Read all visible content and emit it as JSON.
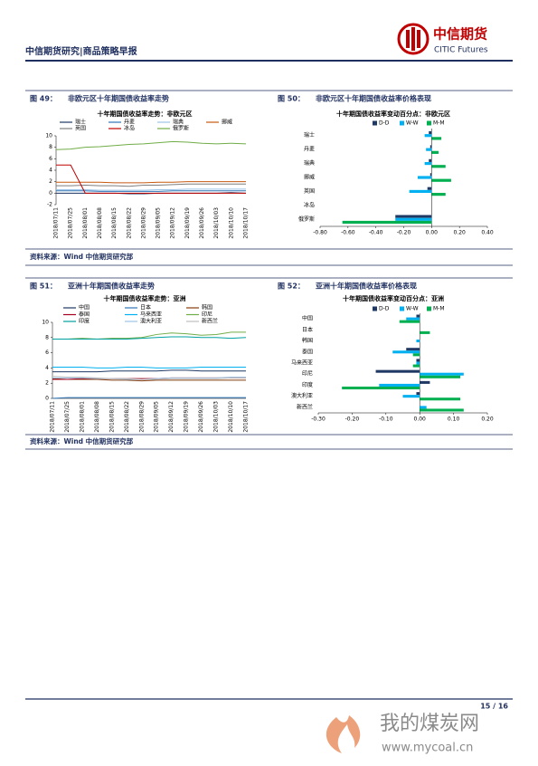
{
  "header": {
    "title": "中信期货研究|商品策略早报",
    "logo_cn": "中信期货",
    "logo_en": "CITIC Futures"
  },
  "figures": [
    {
      "number": "图 49：",
      "caption": "非欧元区十年期国债收益率走势"
    },
    {
      "number": "图 50：",
      "caption": "非欧元区十年期国债收益率价格表现"
    },
    {
      "number": "图 51：",
      "caption": "亚洲十年期国债收益率走势"
    },
    {
      "number": "图 52：",
      "caption": "亚洲十年期国债收益率价格表现"
    }
  ],
  "sources": [
    "资料来源：Wind  中信期货研究部",
    "资料来源：Wind  中信期货研究部"
  ],
  "footer": {
    "page": "15 / 16"
  },
  "watermark": {
    "name": "我的煤炭网",
    "url": "www.mycoal.cn"
  },
  "chart_data": [
    {
      "type": "line",
      "title": "十年期国债收益率走势：非欧元区",
      "categories": [
        "2018/07/11",
        "2018/07/25",
        "2018/08/01",
        "2018/08/08",
        "2018/08/15",
        "2018/08/22",
        "2018/08/29",
        "2018/09/05",
        "2018/09/12",
        "2018/09/19",
        "2018/09/26",
        "2018/10/03",
        "2018/10/10",
        "2018/10/17"
      ],
      "series": [
        {
          "name": "瑞士",
          "color": "#1f3864",
          "values": [
            0.0,
            0.0,
            0.0,
            0.0,
            0.0,
            -0.1,
            -0.1,
            0.0,
            0.0,
            0.0,
            0.0,
            0.0,
            0.1,
            0.0
          ]
        },
        {
          "name": "丹麦",
          "color": "#2e75b6",
          "values": [
            0.4,
            0.4,
            0.4,
            0.3,
            0.3,
            0.3,
            0.3,
            0.3,
            0.4,
            0.4,
            0.4,
            0.4,
            0.4,
            0.4
          ]
        },
        {
          "name": "瑞典",
          "color": "#9dc3e6",
          "values": [
            0.6,
            0.6,
            0.6,
            0.5,
            0.5,
            0.5,
            0.5,
            0.6,
            0.6,
            0.7,
            0.7,
            0.7,
            0.7,
            0.7
          ]
        },
        {
          "name": "挪威",
          "color": "#c55a11",
          "values": [
            1.9,
            1.9,
            1.9,
            1.9,
            1.8,
            1.8,
            1.8,
            1.9,
            1.9,
            2.0,
            2.0,
            2.0,
            2.0,
            2.0
          ]
        },
        {
          "name": "英国",
          "color": "#7f7f7f",
          "values": [
            1.3,
            1.3,
            1.4,
            1.3,
            1.3,
            1.2,
            1.4,
            1.4,
            1.5,
            1.6,
            1.6,
            1.6,
            1.6,
            1.6
          ]
        },
        {
          "name": "冰岛",
          "color": "#c00000",
          "values": [
            4.9,
            4.9,
            0.0,
            0.0,
            0.0,
            0.0,
            0.0,
            0.0,
            0.0,
            0.0,
            0.0,
            0.0,
            0.0,
            0.0
          ]
        },
        {
          "name": "俄罗斯",
          "color": "#70ad47",
          "values": [
            7.6,
            7.7,
            8.0,
            8.1,
            8.3,
            8.5,
            8.6,
            8.8,
            9.0,
            8.9,
            8.7,
            8.6,
            8.7,
            8.6
          ]
        }
      ],
      "ylim": [
        -2,
        10
      ],
      "yticks": [
        -2,
        0,
        2,
        4,
        6,
        8,
        10
      ]
    },
    {
      "type": "bar",
      "orientation": "horizontal",
      "title": "十年期国债收益率变动百分点：非欧元区",
      "categories": [
        "瑞士",
        "丹麦",
        "瑞典",
        "挪威",
        "英国",
        "冰岛",
        "俄罗斯"
      ],
      "series": [
        {
          "name": "D-D",
          "color": "#1f3864",
          "values": [
            -0.02,
            -0.01,
            -0.02,
            -0.01,
            -0.03,
            0,
            -0.26
          ]
        },
        {
          "name": "W-W",
          "color": "#00b0f0",
          "values": [
            -0.05,
            -0.04,
            -0.05,
            -0.1,
            -0.16,
            0,
            -0.26
          ]
        },
        {
          "name": "M-M",
          "color": "#00b050",
          "values": [
            0.07,
            0.05,
            0.1,
            0.14,
            0.1,
            0,
            -0.64
          ]
        }
      ],
      "xlim": [
        -0.8,
        0.4
      ],
      "xticks": [
        {
          "value": -0.8,
          "label": "-0.80"
        },
        {
          "value": -0.6,
          "label": "-0.60"
        },
        {
          "value": -0.4,
          "label": "-0.40"
        },
        {
          "value": -0.2,
          "label": "-0.20"
        },
        {
          "value": 0,
          "label": "0.00"
        },
        {
          "value": 0.2,
          "label": "0.20"
        },
        {
          "value": 0.4,
          "label": "0.40"
        }
      ]
    },
    {
      "type": "line",
      "title": "十年期国债收益率走势：亚洲",
      "categories": [
        "2018/07/11",
        "2018/07/25",
        "2018/08/01",
        "2018/08/08",
        "2018/08/15",
        "2018/08/22",
        "2018/08/29",
        "2018/09/05",
        "2018/09/12",
        "2018/09/19",
        "2018/09/26",
        "2018/10/03",
        "2018/10/10",
        "2018/10/17"
      ],
      "series": [
        {
          "name": "中国",
          "color": "#1f3864",
          "values": [
            3.5,
            3.5,
            3.5,
            3.5,
            3.6,
            3.6,
            3.6,
            3.6,
            3.7,
            3.7,
            3.6,
            3.6,
            3.6,
            3.6
          ]
        },
        {
          "name": "日本",
          "color": "#2e75b6",
          "values": [
            0.0,
            0.1,
            0.1,
            0.1,
            0.1,
            0.1,
            0.1,
            0.1,
            0.1,
            0.1,
            0.1,
            0.1,
            0.1,
            0.1
          ]
        },
        {
          "name": "韩国",
          "color": "#843c0c",
          "values": [
            2.6,
            2.5,
            2.5,
            2.5,
            2.4,
            2.4,
            2.3,
            2.4,
            2.4,
            2.4,
            2.4,
            2.4,
            2.4,
            2.4
          ]
        },
        {
          "name": "泰国",
          "color": "#a50021",
          "values": [
            2.5,
            2.5,
            2.6,
            2.6,
            2.6,
            2.6,
            2.6,
            2.6,
            2.7,
            2.7,
            2.7,
            2.7,
            2.7,
            2.7
          ]
        },
        {
          "name": "马来西亚",
          "color": "#00b0f0",
          "values": [
            4.1,
            4.1,
            4.1,
            4.0,
            4.0,
            4.1,
            4.1,
            4.0,
            4.0,
            4.0,
            4.1,
            4.1,
            4.1,
            4.1
          ]
        },
        {
          "name": "印尼",
          "color": "#70ad47",
          "values": [
            7.8,
            7.8,
            7.9,
            7.8,
            7.9,
            7.9,
            8.0,
            8.4,
            8.6,
            8.5,
            8.3,
            8.4,
            8.7,
            8.7
          ]
        },
        {
          "name": "印度",
          "color": "#00a0a0",
          "values": [
            7.8,
            7.8,
            7.8,
            7.8,
            7.8,
            7.8,
            7.9,
            8.0,
            8.1,
            8.1,
            8.0,
            8.0,
            7.9,
            8.0
          ]
        },
        {
          "name": "澳大利亚",
          "color": "#9dc3e6",
          "values": [
            2.7,
            2.7,
            2.7,
            2.6,
            2.6,
            2.5,
            2.5,
            2.6,
            2.7,
            2.7,
            2.7,
            2.7,
            2.8,
            2.8
          ]
        },
        {
          "name": "新西兰",
          "color": "#bfbfbf",
          "values": [
            2.9,
            2.8,
            2.8,
            2.7,
            2.6,
            2.6,
            2.5,
            2.5,
            2.6,
            2.6,
            2.6,
            2.6,
            2.7,
            2.7
          ]
        }
      ],
      "ylim": [
        0,
        10
      ],
      "yticks": [
        0,
        2,
        4,
        6,
        8,
        10
      ]
    },
    {
      "type": "bar",
      "orientation": "horizontal",
      "title": "十年期国债收益率变动百分点：亚洲",
      "categories": [
        "中国",
        "日本",
        "韩国",
        "泰国",
        "马来西亚",
        "印尼",
        "印度",
        "澳大利亚",
        "新西兰"
      ],
      "series": [
        {
          "name": "D-D",
          "color": "#1f3864",
          "values": [
            -0.01,
            0,
            0,
            -0.04,
            -0.01,
            -0.13,
            0.03,
            -0.01,
            0
          ]
        },
        {
          "name": "W-W",
          "color": "#00b0f0",
          "values": [
            -0.04,
            0,
            -0.01,
            -0.08,
            -0.01,
            0.13,
            -0.12,
            -0.05,
            0.02
          ]
        },
        {
          "name": "M-M",
          "color": "#00b050",
          "values": [
            -0.06,
            0.03,
            0,
            -0.02,
            -0.02,
            0.12,
            -0.23,
            0.12,
            0.13
          ]
        }
      ],
      "xlim": [
        -0.3,
        0.2
      ],
      "xticks": [
        {
          "value": -0.3,
          "label": "-0.30"
        },
        {
          "value": -0.2,
          "label": "-0.20"
        },
        {
          "value": -0.1,
          "label": "-0.10"
        },
        {
          "value": 0,
          "label": "0.00"
        },
        {
          "value": 0.1,
          "label": "0.10"
        },
        {
          "value": 0.2,
          "label": "0.20"
        }
      ]
    }
  ]
}
